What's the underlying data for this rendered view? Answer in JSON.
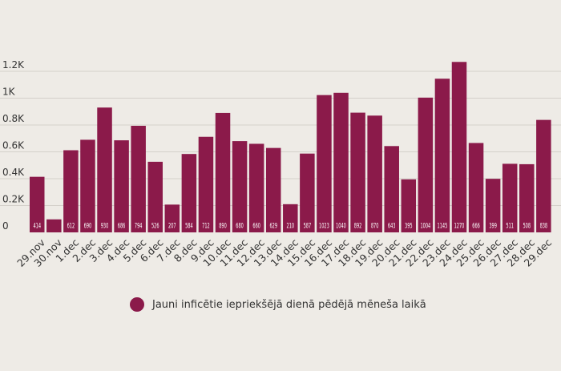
{
  "chart_data": {
    "type": "bar",
    "categories": [
      "29.nov",
      "30.nov",
      "1.dec",
      "2.dec",
      "3.dec",
      "4.dec",
      "5.dec",
      "6.dec",
      "7.dec",
      "8.dec",
      "9.dec",
      "10.dec",
      "11.dec",
      "12.dec",
      "13.dec",
      "14.dec",
      "15.dec",
      "16.dec",
      "17.dec",
      "18.dec",
      "19.dec",
      "20.dec",
      "21.dec",
      "22.dec",
      "23.dec",
      "24.dec",
      "25.dec",
      "26.dec",
      "27.dec",
      "28.dec",
      "29.dec"
    ],
    "values": [
      414,
      97,
      612,
      690,
      930,
      686,
      794,
      526,
      207,
      584,
      712,
      890,
      680,
      660,
      629,
      210,
      587,
      1023,
      1040,
      892,
      870,
      643,
      395,
      1004,
      1145,
      1270,
      666,
      399,
      511,
      508,
      838
    ],
    "value_labels": [
      "414",
      "",
      "612",
      "690",
      "930",
      "686",
      "794",
      "526",
      "207",
      "584",
      "712",
      "890",
      "680",
      "660",
      "629",
      "210",
      "587",
      "1023",
      "1040",
      "892",
      "870",
      "643",
      "395",
      "1004",
      "1145",
      "1270",
      "666",
      "399",
      "511",
      "508",
      "838"
    ],
    "series": [
      {
        "name": "Jauni inficētie iepriekšējā dienā pēdējā mēneša laikā"
      }
    ],
    "yticks": [
      0,
      200,
      400,
      600,
      800,
      1000,
      1200
    ],
    "ytick_labels": [
      "0",
      "0.2K",
      "0.4K",
      "0.6K",
      "0.8K",
      "1K",
      "1.2K"
    ],
    "ylim": [
      0,
      1300
    ],
    "grid": true,
    "legend_position": "bottom",
    "xlabel": "",
    "ylabel": "",
    "title": ""
  },
  "colors": {
    "bar": "#8b1a4a",
    "grid": "#d4d0ca",
    "axis_text": "#333333",
    "value_text": "#ffffff",
    "background": "#eeebe6"
  }
}
